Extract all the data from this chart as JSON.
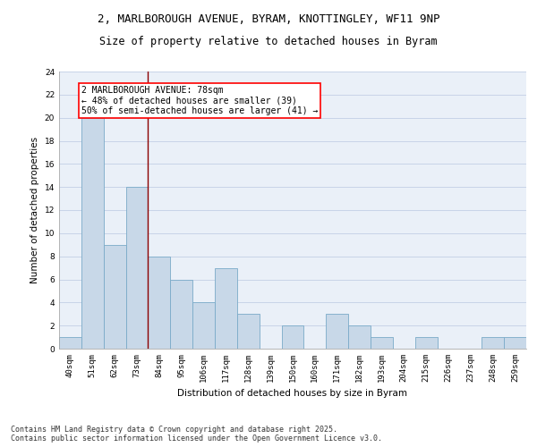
{
  "title_line1": "2, MARLBOROUGH AVENUE, BYRAM, KNOTTINGLEY, WF11 9NP",
  "title_line2": "Size of property relative to detached houses in Byram",
  "xlabel": "Distribution of detached houses by size in Byram",
  "ylabel": "Number of detached properties",
  "categories": [
    "40sqm",
    "51sqm",
    "62sqm",
    "73sqm",
    "84sqm",
    "95sqm",
    "106sqm",
    "117sqm",
    "128sqm",
    "139sqm",
    "150sqm",
    "160sqm",
    "171sqm",
    "182sqm",
    "193sqm",
    "204sqm",
    "215sqm",
    "226sqm",
    "237sqm",
    "248sqm",
    "259sqm"
  ],
  "values": [
    1,
    20,
    9,
    14,
    8,
    6,
    4,
    7,
    3,
    0,
    2,
    0,
    3,
    2,
    1,
    0,
    1,
    0,
    0,
    1,
    1
  ],
  "bar_color": "#c8d8e8",
  "bar_edge_color": "#7aaac8",
  "bar_edge_width": 0.6,
  "red_line_x": 3.5,
  "annotation_text": "2 MARLBOROUGH AVENUE: 78sqm\n← 48% of detached houses are smaller (39)\n50% of semi-detached houses are larger (41) →",
  "annotation_box_color": "white",
  "annotation_box_edge_color": "red",
  "ylim": [
    0,
    24
  ],
  "yticks": [
    0,
    2,
    4,
    6,
    8,
    10,
    12,
    14,
    16,
    18,
    20,
    22,
    24
  ],
  "bg_color": "#eaf0f8",
  "grid_color": "#c8d4e8",
  "footer_text": "Contains HM Land Registry data © Crown copyright and database right 2025.\nContains public sector information licensed under the Open Government Licence v3.0.",
  "title_fontsize": 9,
  "subtitle_fontsize": 8.5,
  "axis_label_fontsize": 7.5,
  "tick_fontsize": 6.5,
  "annotation_fontsize": 7,
  "footer_fontsize": 6
}
